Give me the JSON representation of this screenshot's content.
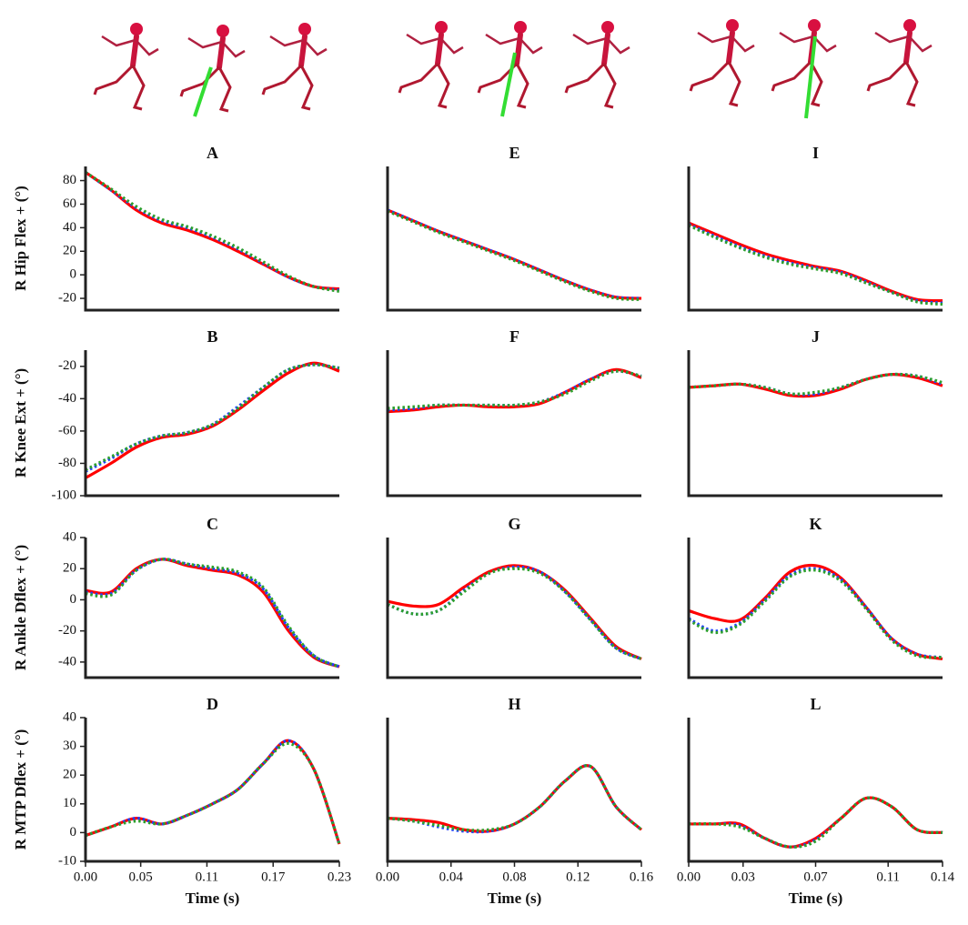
{
  "chart_data": [
    {
      "type": "line",
      "title": "A",
      "ylabel": "R Hip Flex + (°)",
      "x": [
        0,
        0.023,
        0.046,
        0.069,
        0.092,
        0.115,
        0.138,
        0.161,
        0.184,
        0.207,
        0.23
      ],
      "xlim": [
        0,
        0.23
      ],
      "ylim": [
        -30,
        92
      ],
      "yticks": [
        -20,
        0,
        20,
        40,
        60,
        80
      ],
      "series": [
        {
          "color": "#ff0000",
          "linestyle": "solid",
          "values": [
            87,
            72,
            55,
            44,
            38,
            30,
            20,
            9,
            -2,
            -10,
            -12
          ]
        },
        {
          "color": "#1f3fff",
          "linestyle": "dotted",
          "values": [
            87,
            72,
            57,
            46,
            40,
            32,
            22,
            10,
            -2,
            -10,
            -13
          ]
        },
        {
          "color": "#2ca02c",
          "linestyle": "dotted",
          "values": [
            87,
            73,
            58,
            47,
            41,
            33,
            23,
            11,
            -1,
            -10,
            -14
          ]
        }
      ]
    },
    {
      "type": "line",
      "title": "B",
      "ylabel": "R Knee Ext + (°)",
      "x": [
        0,
        0.023,
        0.046,
        0.069,
        0.092,
        0.115,
        0.138,
        0.161,
        0.184,
        0.207,
        0.23
      ],
      "xlim": [
        0,
        0.23
      ],
      "ylim": [
        -100,
        -10
      ],
      "yticks": [
        -100,
        -80,
        -60,
        -40,
        -20
      ],
      "series": [
        {
          "color": "#ff0000",
          "linestyle": "solid",
          "values": [
            -89,
            -80,
            -70,
            -64,
            -62,
            -57,
            -47,
            -35,
            -24,
            -18,
            -23
          ]
        },
        {
          "color": "#1f3fff",
          "linestyle": "dotted",
          "values": [
            -85,
            -77,
            -68,
            -63,
            -61,
            -56,
            -45,
            -33,
            -22,
            -19,
            -21
          ]
        },
        {
          "color": "#2ca02c",
          "linestyle": "dotted",
          "values": [
            -84,
            -76,
            -68,
            -63,
            -61,
            -56,
            -46,
            -33,
            -22,
            -19,
            -21
          ]
        }
      ]
    },
    {
      "type": "line",
      "title": "C",
      "ylabel": "R Ankle Dflex + (°)",
      "x": [
        0,
        0.023,
        0.046,
        0.069,
        0.092,
        0.115,
        0.138,
        0.161,
        0.184,
        0.207,
        0.23
      ],
      "xlim": [
        0,
        0.23
      ],
      "ylim": [
        -50,
        40
      ],
      "yticks": [
        -40,
        -20,
        0,
        20,
        40
      ],
      "series": [
        {
          "color": "#ff0000",
          "linestyle": "solid",
          "values": [
            6,
            5,
            20,
            26,
            22,
            19,
            16,
            5,
            -20,
            -37,
            -43
          ]
        },
        {
          "color": "#1f3fff",
          "linestyle": "dotted",
          "values": [
            5,
            4,
            19,
            26,
            23,
            20,
            17,
            7,
            -18,
            -36,
            -43
          ]
        },
        {
          "color": "#2ca02c",
          "linestyle": "dotted",
          "values": [
            4,
            3,
            19,
            26,
            23,
            21,
            18,
            8,
            -17,
            -36,
            -43
          ]
        }
      ]
    },
    {
      "type": "line",
      "title": "D",
      "ylabel": "R MTP Dflex + (°)",
      "xlabel": "Time (s)",
      "x": [
        0,
        0.023,
        0.046,
        0.069,
        0.092,
        0.115,
        0.138,
        0.161,
        0.184,
        0.207,
        0.23
      ],
      "xlim": [
        0,
        0.23
      ],
      "ylim": [
        -10,
        40
      ],
      "yticks": [
        -10,
        0,
        10,
        20,
        30,
        40
      ],
      "xticks": [
        {
          "value": 0,
          "label": "0.00"
        },
        0.05,
        0.11,
        0.17,
        0.23
      ],
      "series": [
        {
          "color": "#ff0000",
          "linestyle": "solid",
          "values": [
            -1,
            2,
            5,
            3,
            6,
            10,
            15,
            24,
            32,
            22,
            -4
          ]
        },
        {
          "color": "#1f3fff",
          "linestyle": "dotted",
          "values": [
            -1,
            2,
            5,
            3,
            6,
            10,
            15,
            24,
            32,
            22,
            -4
          ]
        },
        {
          "color": "#2ca02c",
          "linestyle": "dotted",
          "values": [
            -1,
            2,
            4,
            3,
            6,
            10,
            15,
            24,
            31,
            22,
            -4
          ]
        }
      ]
    },
    {
      "type": "line",
      "title": "E",
      "x": [
        0,
        0.016,
        0.032,
        0.048,
        0.064,
        0.08,
        0.096,
        0.112,
        0.128,
        0.144,
        0.16
      ],
      "xlim": [
        0,
        0.16
      ],
      "ylim": [
        -30,
        92
      ],
      "series": [
        {
          "color": "#ff0000",
          "linestyle": "solid",
          "values": [
            55,
            46,
            37,
            29,
            21,
            13,
            4,
            -5,
            -13,
            -19,
            -20
          ]
        },
        {
          "color": "#1f3fff",
          "linestyle": "dotted",
          "values": [
            55,
            46,
            37,
            29,
            21,
            13,
            4,
            -5,
            -13,
            -19,
            -20
          ]
        },
        {
          "color": "#2ca02c",
          "linestyle": "dotted",
          "values": [
            54,
            45,
            36,
            28,
            20,
            12,
            3,
            -6,
            -14,
            -20,
            -21
          ]
        }
      ]
    },
    {
      "type": "line",
      "title": "F",
      "x": [
        0,
        0.016,
        0.032,
        0.048,
        0.064,
        0.08,
        0.096,
        0.112,
        0.128,
        0.144,
        0.16
      ],
      "xlim": [
        0,
        0.16
      ],
      "ylim": [
        -100,
        -10
      ],
      "series": [
        {
          "color": "#ff0000",
          "linestyle": "solid",
          "values": [
            -48,
            -47,
            -45,
            -44,
            -45,
            -45,
            -43,
            -36,
            -28,
            -22,
            -27
          ]
        },
        {
          "color": "#1f3fff",
          "linestyle": "dotted",
          "values": [
            -47,
            -46,
            -44,
            -44,
            -44,
            -44,
            -42,
            -36,
            -28,
            -23,
            -26
          ]
        },
        {
          "color": "#2ca02c",
          "linestyle": "dotted",
          "values": [
            -46,
            -45,
            -44,
            -44,
            -44,
            -44,
            -42,
            -37,
            -29,
            -23,
            -26
          ]
        }
      ]
    },
    {
      "type": "line",
      "title": "G",
      "x": [
        0,
        0.016,
        0.032,
        0.048,
        0.064,
        0.08,
        0.096,
        0.112,
        0.128,
        0.144,
        0.16
      ],
      "xlim": [
        0,
        0.16
      ],
      "ylim": [
        -50,
        40
      ],
      "series": [
        {
          "color": "#ff0000",
          "linestyle": "solid",
          "values": [
            -1,
            -4,
            -3,
            8,
            18,
            22,
            18,
            6,
            -12,
            -30,
            -38
          ]
        },
        {
          "color": "#1f3fff",
          "linestyle": "dotted",
          "values": [
            -3,
            -9,
            -7,
            6,
            17,
            21,
            18,
            5,
            -13,
            -31,
            -38
          ]
        },
        {
          "color": "#2ca02c",
          "linestyle": "dotted",
          "values": [
            -3,
            -9,
            -7,
            5,
            17,
            20,
            17,
            5,
            -13,
            -31,
            -38
          ]
        }
      ]
    },
    {
      "type": "line",
      "title": "H",
      "xlabel": "Time (s)",
      "x": [
        0,
        0.016,
        0.032,
        0.048,
        0.064,
        0.08,
        0.096,
        0.112,
        0.128,
        0.144,
        0.16
      ],
      "xlim": [
        0,
        0.16
      ],
      "ylim": [
        -10,
        40
      ],
      "xticks": [
        {
          "value": 0,
          "label": "0.00"
        },
        0.04,
        0.08,
        0.12,
        0.16
      ],
      "series": [
        {
          "color": "#ff0000",
          "linestyle": "solid",
          "values": [
            5,
            4.5,
            3.5,
            1,
            0.5,
            3,
            9,
            18,
            23,
            9,
            1
          ]
        },
        {
          "color": "#1f3fff",
          "linestyle": "dotted",
          "values": [
            5,
            4,
            2,
            0.5,
            0.5,
            3,
            9,
            18,
            23,
            9,
            1
          ]
        },
        {
          "color": "#2ca02c",
          "linestyle": "dotted",
          "values": [
            5,
            4,
            2.5,
            1,
            1,
            3,
            9,
            18,
            23,
            9,
            1
          ]
        }
      ]
    },
    {
      "type": "line",
      "title": "I",
      "x": [
        0,
        0.014,
        0.028,
        0.042,
        0.056,
        0.07,
        0.084,
        0.098,
        0.112,
        0.126,
        0.14
      ],
      "xlim": [
        0,
        0.14
      ],
      "ylim": [
        -30,
        92
      ],
      "series": [
        {
          "color": "#ff0000",
          "linestyle": "solid",
          "values": [
            44,
            35,
            26,
            18,
            12,
            7,
            3,
            -5,
            -14,
            -21,
            -22
          ]
        },
        {
          "color": "#1f3fff",
          "linestyle": "dotted",
          "values": [
            43,
            33,
            24,
            16,
            10,
            6,
            2,
            -6,
            -15,
            -22,
            -24
          ]
        },
        {
          "color": "#2ca02c",
          "linestyle": "dotted",
          "values": [
            42,
            32,
            23,
            15,
            9,
            5,
            1,
            -7,
            -15,
            -23,
            -25
          ]
        }
      ]
    },
    {
      "type": "line",
      "title": "J",
      "x": [
        0,
        0.014,
        0.028,
        0.042,
        0.056,
        0.07,
        0.084,
        0.098,
        0.112,
        0.126,
        0.14
      ],
      "xlim": [
        0,
        0.14
      ],
      "ylim": [
        -100,
        -10
      ],
      "series": [
        {
          "color": "#ff0000",
          "linestyle": "solid",
          "values": [
            -33,
            -32,
            -31,
            -34,
            -38,
            -38,
            -34,
            -28,
            -25,
            -27,
            -32
          ]
        },
        {
          "color": "#1f3fff",
          "linestyle": "dotted",
          "values": [
            -33,
            -32,
            -31,
            -33,
            -37,
            -37,
            -33,
            -28,
            -25,
            -26,
            -31
          ]
        },
        {
          "color": "#2ca02c",
          "linestyle": "dotted",
          "values": [
            -33,
            -32,
            -31,
            -33,
            -37,
            -36,
            -33,
            -28,
            -25,
            -26,
            -30
          ]
        }
      ]
    },
    {
      "type": "line",
      "title": "K",
      "x": [
        0,
        0.014,
        0.028,
        0.042,
        0.056,
        0.07,
        0.084,
        0.098,
        0.112,
        0.126,
        0.14
      ],
      "xlim": [
        0,
        0.14
      ],
      "ylim": [
        -50,
        40
      ],
      "series": [
        {
          "color": "#ff0000",
          "linestyle": "solid",
          "values": [
            -7,
            -12,
            -13,
            1,
            18,
            22,
            14,
            -5,
            -25,
            -35,
            -38
          ]
        },
        {
          "color": "#1f3fff",
          "linestyle": "dotted",
          "values": [
            -12,
            -20,
            -15,
            0,
            16,
            20,
            13,
            -5,
            -25,
            -35,
            -37
          ]
        },
        {
          "color": "#2ca02c",
          "linestyle": "dotted",
          "values": [
            -13,
            -21,
            -16,
            -1,
            15,
            19,
            12,
            -6,
            -26,
            -36,
            -37
          ]
        }
      ]
    },
    {
      "type": "line",
      "title": "L",
      "xlabel": "Time (s)",
      "x": [
        0,
        0.014,
        0.028,
        0.042,
        0.056,
        0.07,
        0.084,
        0.098,
        0.112,
        0.126,
        0.14
      ],
      "xlim": [
        0,
        0.14
      ],
      "ylim": [
        -10,
        40
      ],
      "xticks": [
        {
          "value": 0,
          "label": "0.00"
        },
        0.03,
        0.07,
        0.11,
        0.14
      ],
      "series": [
        {
          "color": "#ff0000",
          "linestyle": "solid",
          "values": [
            3,
            3,
            3,
            -2,
            -5,
            -2,
            5,
            12,
            9,
            1,
            0
          ]
        },
        {
          "color": "#1f3fff",
          "linestyle": "dotted",
          "values": [
            3,
            3,
            2.5,
            -2,
            -5,
            -2.5,
            5,
            12,
            9,
            1,
            0
          ]
        },
        {
          "color": "#2ca02c",
          "linestyle": "dotted",
          "values": [
            3,
            3,
            2,
            -2,
            -5,
            -3,
            5,
            12,
            9,
            1,
            0
          ]
        }
      ]
    }
  ]
}
